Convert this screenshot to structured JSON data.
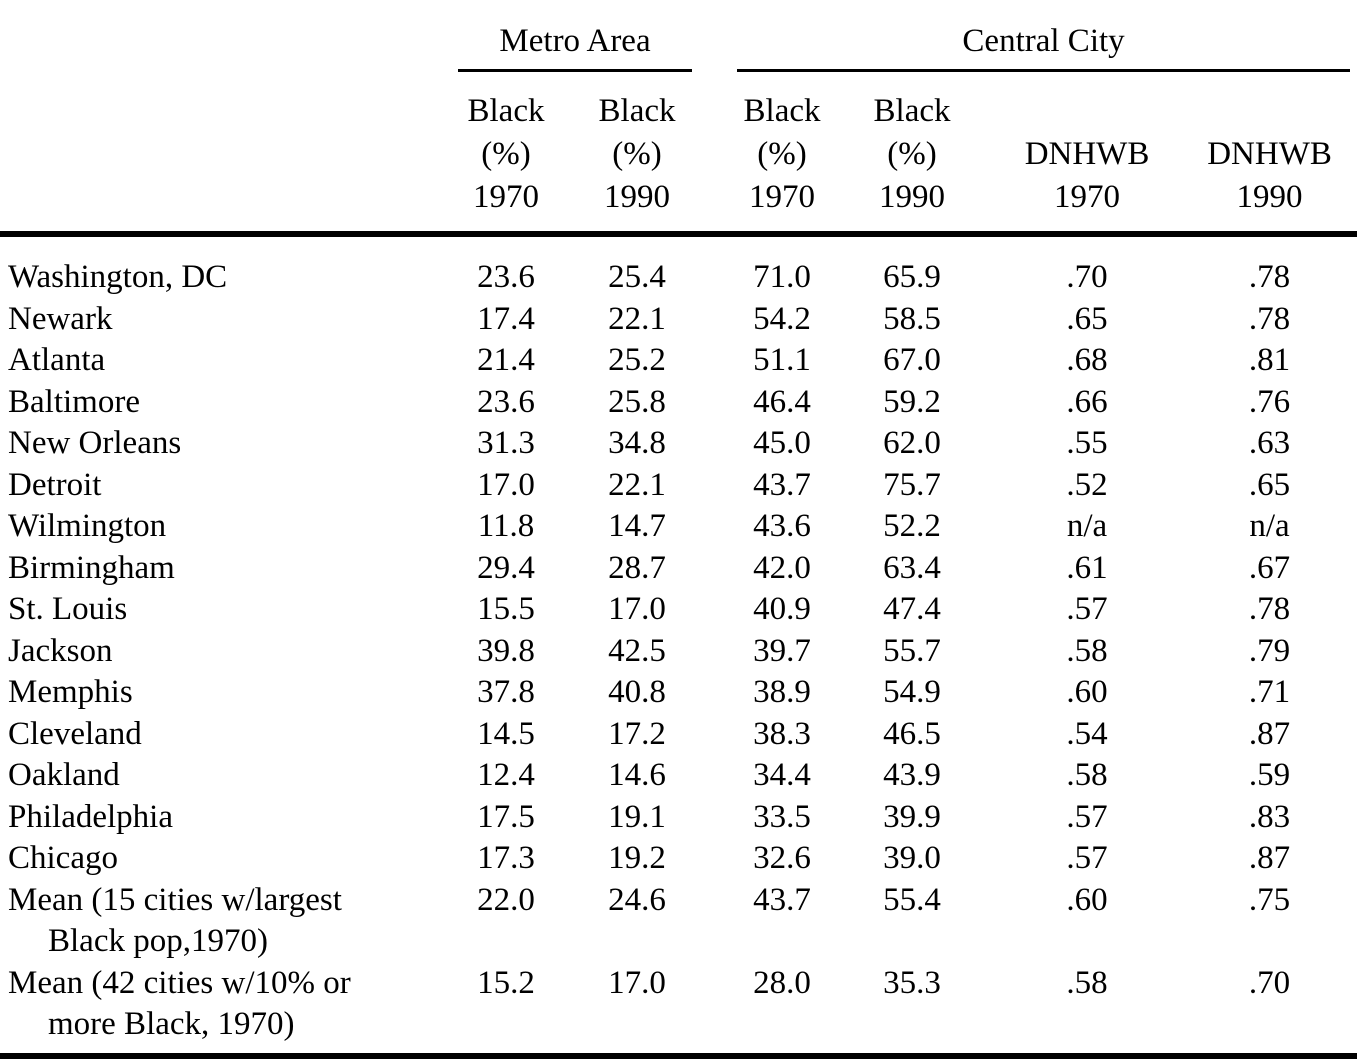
{
  "table": {
    "group_headers": [
      {
        "label": "Metro Area"
      },
      {
        "label": "Central City"
      }
    ],
    "columns": [
      {
        "label": "Black\n(%)\n1970"
      },
      {
        "label": "Black\n(%)\n1990"
      },
      {
        "label": "Black\n(%)\n1970"
      },
      {
        "label": "Black\n(%)\n1990"
      },
      {
        "label": "DNHWB\n1970"
      },
      {
        "label": "DNHWB\n1990"
      }
    ],
    "rows": [
      {
        "label": "Washington, DC",
        "values": [
          "23.6",
          "25.4",
          "71.0",
          "65.9",
          ".70",
          ".78"
        ]
      },
      {
        "label": "Newark",
        "values": [
          "17.4",
          "22.1",
          "54.2",
          "58.5",
          ".65",
          ".78"
        ]
      },
      {
        "label": "Atlanta",
        "values": [
          "21.4",
          "25.2",
          "51.1",
          "67.0",
          ".68",
          ".81"
        ]
      },
      {
        "label": "Baltimore",
        "values": [
          "23.6",
          "25.8",
          "46.4",
          "59.2",
          ".66",
          ".76"
        ]
      },
      {
        "label": "New Orleans",
        "values": [
          "31.3",
          "34.8",
          "45.0",
          "62.0",
          ".55",
          ".63"
        ]
      },
      {
        "label": "Detroit",
        "values": [
          "17.0",
          "22.1",
          "43.7",
          "75.7",
          ".52",
          ".65"
        ]
      },
      {
        "label": "Wilmington",
        "values": [
          "11.8",
          "14.7",
          "43.6",
          "52.2",
          "n/a",
          "n/a"
        ]
      },
      {
        "label": "Birmingham",
        "values": [
          "29.4",
          "28.7",
          "42.0",
          "63.4",
          ".61",
          ".67"
        ]
      },
      {
        "label": "St. Louis",
        "values": [
          "15.5",
          "17.0",
          "40.9",
          "47.4",
          ".57",
          ".78"
        ]
      },
      {
        "label": "Jackson",
        "values": [
          "39.8",
          "42.5",
          "39.7",
          "55.7",
          ".58",
          ".79"
        ]
      },
      {
        "label": "Memphis",
        "values": [
          "37.8",
          "40.8",
          "38.9",
          "54.9",
          ".60",
          ".71"
        ]
      },
      {
        "label": "Cleveland",
        "values": [
          "14.5",
          "17.2",
          "38.3",
          "46.5",
          ".54",
          ".87"
        ]
      },
      {
        "label": "Oakland",
        "values": [
          "12.4",
          "14.6",
          "34.4",
          "43.9",
          ".58",
          ".59"
        ]
      },
      {
        "label": "Philadelphia",
        "values": [
          "17.5",
          "19.1",
          "33.5",
          "39.9",
          ".57",
          ".83"
        ]
      },
      {
        "label": "Chicago",
        "values": [
          "17.3",
          "19.2",
          "32.6",
          "39.0",
          ".57",
          ".87"
        ]
      },
      {
        "label": "Mean (15 cities w/largest",
        "label2": "Black pop,1970)",
        "values": [
          "22.0",
          "24.6",
          "43.7",
          "55.4",
          ".60",
          ".75"
        ]
      },
      {
        "label": "Mean (42 cities w/10% or",
        "label2": "more Black, 1970)",
        "values": [
          "15.2",
          "17.0",
          "28.0",
          "35.3",
          ".58",
          ".70"
        ]
      }
    ]
  }
}
